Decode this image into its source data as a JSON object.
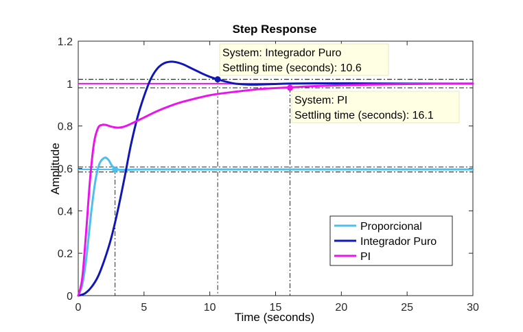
{
  "chart_data": {
    "type": "line",
    "title": "Step Response",
    "xlabel": "Time (seconds)",
    "ylabel": "Amplitude",
    "xlim": [
      0,
      30
    ],
    "ylim": [
      0,
      1.2
    ],
    "xticks": [
      "0",
      "5",
      "10",
      "15",
      "20",
      "25",
      "30"
    ],
    "yticks": [
      "0",
      "0.2",
      "0.4",
      "0.6",
      "0.8",
      "1",
      "1.2"
    ],
    "grid": false,
    "legend_position": "bottom-right",
    "series": [
      {
        "name": "Proporcional",
        "color": "#4DBEEE",
        "x": [
          0,
          0.3,
          0.6,
          1.0,
          1.3,
          1.6,
          2.0,
          2.3,
          2.6,
          3.0,
          3.5,
          4.0,
          5.0,
          7.0,
          10.0,
          15.0,
          20.0,
          30.0
        ],
        "y": [
          0,
          0.05,
          0.17,
          0.4,
          0.54,
          0.62,
          0.65,
          0.64,
          0.61,
          0.595,
          0.592,
          0.594,
          0.595,
          0.595,
          0.595,
          0.595,
          0.595,
          0.595
        ]
      },
      {
        "name": "Integrador Puro",
        "color": "#0F17B4",
        "x": [
          0,
          0.5,
          1.0,
          1.5,
          2.0,
          2.5,
          3.0,
          3.5,
          4.0,
          4.5,
          5.0,
          5.5,
          6.0,
          6.5,
          7.0,
          7.5,
          8.0,
          8.5,
          9.0,
          9.5,
          10.0,
          10.6,
          11.0,
          11.5,
          12.0,
          13.0,
          14.0,
          15.0,
          16.0,
          18.0,
          20.0,
          25.0,
          30.0
        ],
        "y": [
          0,
          0.01,
          0.04,
          0.09,
          0.17,
          0.27,
          0.4,
          0.55,
          0.71,
          0.84,
          0.94,
          1.02,
          1.07,
          1.095,
          1.103,
          1.1,
          1.09,
          1.075,
          1.06,
          1.045,
          1.032,
          1.02,
          1.013,
          1.005,
          0.999,
          0.995,
          0.996,
          0.998,
          1.0,
          1.001,
          1.001,
          1.0,
          1.0
        ]
      },
      {
        "name": "PI",
        "color": "#EA14EA",
        "x": [
          0,
          0.3,
          0.6,
          0.9,
          1.2,
          1.5,
          1.8,
          2.1,
          2.5,
          3.0,
          3.5,
          4.0,
          5.0,
          6.0,
          7.0,
          8.0,
          10.0,
          12.0,
          14.0,
          16.1,
          18.0,
          20.0,
          22.0,
          25.0,
          30.0
        ],
        "y": [
          0,
          0.08,
          0.3,
          0.55,
          0.72,
          0.79,
          0.805,
          0.805,
          0.797,
          0.792,
          0.797,
          0.81,
          0.84,
          0.87,
          0.895,
          0.915,
          0.945,
          0.962,
          0.975,
          0.982,
          0.988,
          0.992,
          0.995,
          0.998,
          1.0
        ]
      }
    ],
    "settling_markers": [
      {
        "series": "Proporcional",
        "x": 2.8,
        "y": 0.595,
        "band": [
          0.583,
          0.607
        ]
      },
      {
        "series": "Integrador Puro",
        "x": 10.6,
        "y": 1.02,
        "band": [
          0.98,
          1.02
        ]
      },
      {
        "series": "PI",
        "x": 16.1,
        "y": 0.98,
        "band": [
          0.98,
          1.02
        ]
      }
    ],
    "datatips": [
      {
        "series": "Integrador Puro",
        "line1": "System: Integrador Puro",
        "line2": "Settling time (seconds): 10.6"
      },
      {
        "series": "PI",
        "line1": "System: PI",
        "line2": "Settling time (seconds): 16.1"
      }
    ]
  }
}
